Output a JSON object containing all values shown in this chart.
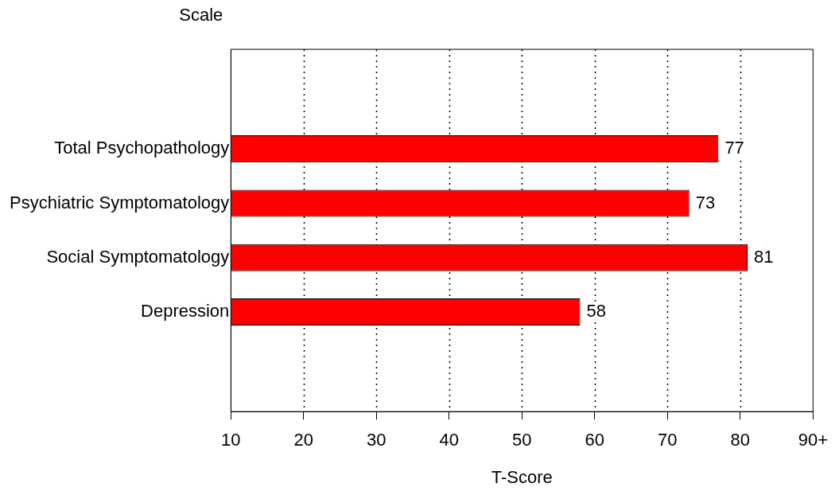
{
  "chart_data": {
    "type": "bar",
    "orientation": "horizontal",
    "annotations": [
      "Scale"
    ],
    "xlabel": "T-Score",
    "categories": [
      "Total Psychopathology",
      "Psychiatric Symptomatology",
      "Social Symptomatology",
      "Depression"
    ],
    "values": [
      77,
      73,
      81,
      58
    ],
    "color": "#ff0000",
    "xlim": [
      10,
      90
    ],
    "xticks": [
      10,
      20,
      30,
      40,
      50,
      60,
      70,
      80,
      {
        "value": 90,
        "label": "90+"
      }
    ],
    "grid": "x",
    "data_labels": true,
    "legend": false
  }
}
